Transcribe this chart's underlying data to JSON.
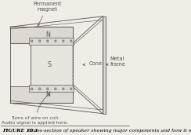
{
  "bg_color": "#f0ece6",
  "line_color": "#555555",
  "fill_magnet": "#ddd8d2",
  "fill_s": "#e8e4de",
  "fill_coil": "#b8b4ae",
  "title_bold": "FIGURE 10.1",
  "title_text": "Cross-section of speaker showing major components and how it works.",
  "label_permanent_magnet": "Permanent\nmagnet",
  "label_cone": "Cone",
  "label_metal_frame": "Metal\nframe",
  "label_N_top": "N",
  "label_S": "S",
  "label_N_bot": "N",
  "label_coil": "Turns of wire on coil.\nAudio signal is applied here."
}
